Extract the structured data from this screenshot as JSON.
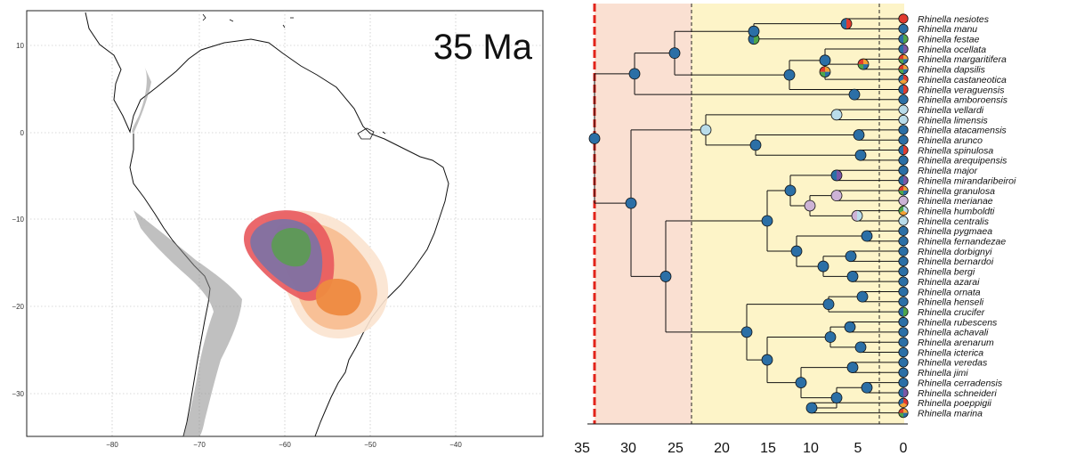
{
  "map": {
    "time_label": "35 Ma",
    "lat_ticks": [
      "10",
      "0",
      "−10",
      "−20",
      "−30"
    ],
    "lon_ticks": [
      "−80",
      "−70",
      "−60",
      "−50",
      "−40"
    ],
    "range_colors": {
      "red": "#e8585c",
      "purple": "#7b72a6",
      "green": "#5d9a55",
      "orange_outer": "#fbe3cf",
      "orange_mid": "#f7b98b",
      "orange_core": "#ee8a40",
      "andes_relief": "#8c8c8c"
    }
  },
  "tree": {
    "x_axis_ticks": [
      "35",
      "30",
      "25",
      "20",
      "15",
      "10",
      "5",
      "0"
    ],
    "taxa": [
      "Rhinella nesiotes",
      "Rhinella manu",
      "Rhinella festae",
      "Rhinella ocellata",
      "Rhinella margaritifera",
      "Rhinella dapsilis",
      "Rhinella castaneotica",
      "Rhinella veraguensis",
      "Rhinella amboroensis",
      "Rhinella vellardi",
      "Rhinella limensis",
      "Rhinella atacamensis",
      "Rhinella arunco",
      "Rhinella spinulosa",
      "Rhinella arequipensis",
      "Rhinella major",
      "Rhinella mirandaribeiroi",
      "Rhinella granulosa",
      "Rhinella merianae",
      "Rhinella humboldti",
      "Rhinella centralis",
      "Rhinella pygmaea",
      "Rhinella fernandezae",
      "Rhinella dorbignyi",
      "Rhinella bernardoi",
      "Rhinella bergi",
      "Rhinella azarai",
      "Rhinella ornata",
      "Rhinella henseli",
      "Rhinella crucifer",
      "Rhinella rubescens",
      "Rhinella achavali",
      "Rhinella arenarum",
      "Rhinella icterica",
      "Rhinella veredas",
      "Rhinella jimi",
      "Rhinella cerradensis",
      "Rhinella schneideri",
      "Rhinella poeppigii",
      "Rhinella marina"
    ],
    "tip_states": [
      "red",
      "blue",
      "green_blue",
      "purple_blue",
      "multi",
      "multi",
      "multi_red",
      "red_blue",
      "blue",
      "lightblue",
      "lightblue",
      "blue",
      "blue",
      "red_blue",
      "blue",
      "blue",
      "purple_blue",
      "multi",
      "lilac",
      "multi_light",
      "lightblue",
      "blue",
      "blue",
      "blue",
      "blue",
      "blue",
      "blue",
      "blue",
      "blue",
      "green_blue",
      "blue",
      "blue",
      "blue",
      "blue",
      "blue",
      "blue",
      "blue",
      "purple_blue",
      "multi_red",
      "multi"
    ],
    "colors": {
      "background_old": "#fae0d2",
      "background_young": "#fdf4c8",
      "node_blue": "#2b6fa6",
      "light_blue": "#b9dcea",
      "red": "#e23b2e",
      "green": "#4ea64b",
      "purple": "#7b57a6",
      "orange": "#f2a033",
      "lilac": "#cdb3d6",
      "current_time_line": "#e2231a"
    }
  }
}
